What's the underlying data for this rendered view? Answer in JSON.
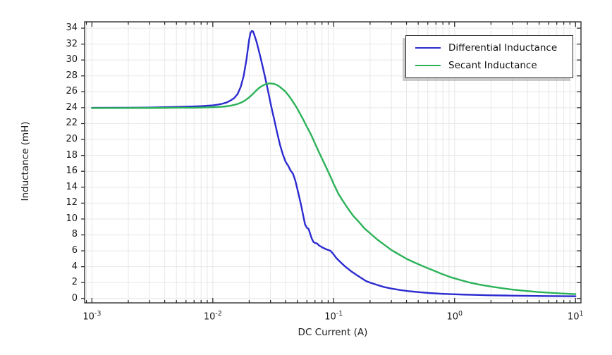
{
  "chart_data": {
    "type": "line",
    "title": "",
    "xlabel": "DC Current (A)",
    "ylabel": "Inductance (mH)",
    "x_scale": "log",
    "y_scale": "linear",
    "xlim": [
      0.00087,
      11.1
    ],
    "ylim": [
      -0.55,
      34.8
    ],
    "x_tick_exponents": [
      -3,
      -2,
      -1,
      0,
      1
    ],
    "y_ticks": [
      0,
      2,
      4,
      6,
      8,
      10,
      12,
      14,
      16,
      18,
      20,
      22,
      24,
      26,
      28,
      30,
      32,
      34
    ],
    "grid": true,
    "grid_color": "#e7e7e7",
    "frame_color": "#202020",
    "legend_position": "top-right",
    "legend_border_color": "#2a2a2a",
    "series": [
      {
        "name": "Differential Inductance",
        "color": "#2b2bd0",
        "points": [
          [
            0.001,
            23.98
          ],
          [
            0.0015,
            23.99
          ],
          [
            0.002,
            24.0
          ],
          [
            0.003,
            24.02
          ],
          [
            0.004,
            24.06
          ],
          [
            0.005,
            24.1
          ],
          [
            0.006,
            24.13
          ],
          [
            0.007,
            24.16
          ],
          [
            0.008,
            24.2
          ],
          [
            0.009,
            24.25
          ],
          [
            0.01,
            24.3
          ],
          [
            0.011,
            24.38
          ],
          [
            0.012,
            24.5
          ],
          [
            0.013,
            24.65
          ],
          [
            0.014,
            24.9
          ],
          [
            0.015,
            25.2
          ],
          [
            0.016,
            25.7
          ],
          [
            0.017,
            26.6
          ],
          [
            0.018,
            28.0
          ],
          [
            0.019,
            30.1
          ],
          [
            0.0195,
            31.4
          ],
          [
            0.02,
            32.6
          ],
          [
            0.0205,
            33.4
          ],
          [
            0.021,
            33.65
          ],
          [
            0.0215,
            33.6
          ],
          [
            0.022,
            33.2
          ],
          [
            0.023,
            32.3
          ],
          [
            0.024,
            31.2
          ],
          [
            0.025,
            30.1
          ],
          [
            0.026,
            29.0
          ],
          [
            0.027,
            27.9
          ],
          [
            0.028,
            26.8
          ],
          [
            0.029,
            25.7
          ],
          [
            0.03,
            24.6
          ],
          [
            0.031,
            23.6
          ],
          [
            0.032,
            22.7
          ],
          [
            0.034,
            20.9
          ],
          [
            0.036,
            19.3
          ],
          [
            0.038,
            18.1
          ],
          [
            0.04,
            17.2
          ],
          [
            0.042,
            16.7
          ],
          [
            0.044,
            16.1
          ],
          [
            0.046,
            15.7
          ],
          [
            0.048,
            14.9
          ],
          [
            0.05,
            13.8
          ],
          [
            0.052,
            12.7
          ],
          [
            0.054,
            11.6
          ],
          [
            0.056,
            10.4
          ],
          [
            0.058,
            9.3
          ],
          [
            0.06,
            8.9
          ],
          [
            0.062,
            8.75
          ],
          [
            0.064,
            8.1
          ],
          [
            0.066,
            7.5
          ],
          [
            0.068,
            7.1
          ],
          [
            0.07,
            7.0
          ],
          [
            0.073,
            6.9
          ],
          [
            0.076,
            6.65
          ],
          [
            0.08,
            6.45
          ],
          [
            0.085,
            6.25
          ],
          [
            0.09,
            6.1
          ],
          [
            0.094,
            6.0
          ],
          [
            0.098,
            5.7
          ],
          [
            0.105,
            5.1
          ],
          [
            0.115,
            4.5
          ],
          [
            0.125,
            4.0
          ],
          [
            0.14,
            3.4
          ],
          [
            0.155,
            2.95
          ],
          [
            0.17,
            2.55
          ],
          [
            0.185,
            2.2
          ],
          [
            0.2,
            2.0
          ],
          [
            0.23,
            1.7
          ],
          [
            0.26,
            1.45
          ],
          [
            0.3,
            1.25
          ],
          [
            0.36,
            1.05
          ],
          [
            0.43,
            0.9
          ],
          [
            0.52,
            0.78
          ],
          [
            0.63,
            0.68
          ],
          [
            0.78,
            0.6
          ],
          [
            0.95,
            0.54
          ],
          [
            1.2,
            0.49
          ],
          [
            1.5,
            0.45
          ],
          [
            1.9,
            0.41
          ],
          [
            2.5,
            0.38
          ],
          [
            3.2,
            0.35
          ],
          [
            4.2,
            0.33
          ],
          [
            5.5,
            0.31
          ],
          [
            7.0,
            0.3
          ],
          [
            8.5,
            0.29
          ],
          [
            10,
            0.28
          ]
        ]
      },
      {
        "name": "Secant Inductance",
        "color": "#2bb258",
        "points": [
          [
            0.001,
            23.95
          ],
          [
            0.002,
            23.96
          ],
          [
            0.003,
            23.97
          ],
          [
            0.004,
            23.98
          ],
          [
            0.005,
            24.0
          ],
          [
            0.006,
            24.0
          ],
          [
            0.007,
            24.0
          ],
          [
            0.008,
            24.02
          ],
          [
            0.009,
            24.04
          ],
          [
            0.01,
            24.06
          ],
          [
            0.011,
            24.09
          ],
          [
            0.012,
            24.13
          ],
          [
            0.013,
            24.18
          ],
          [
            0.014,
            24.25
          ],
          [
            0.015,
            24.35
          ],
          [
            0.016,
            24.47
          ],
          [
            0.017,
            24.62
          ],
          [
            0.018,
            24.8
          ],
          [
            0.019,
            25.05
          ],
          [
            0.02,
            25.3
          ],
          [
            0.021,
            25.6
          ],
          [
            0.022,
            25.9
          ],
          [
            0.023,
            26.2
          ],
          [
            0.024,
            26.45
          ],
          [
            0.025,
            26.65
          ],
          [
            0.026,
            26.8
          ],
          [
            0.027,
            26.92
          ],
          [
            0.028,
            27.0
          ],
          [
            0.029,
            27.04
          ],
          [
            0.03,
            27.05
          ],
          [
            0.032,
            27.0
          ],
          [
            0.034,
            26.85
          ],
          [
            0.036,
            26.6
          ],
          [
            0.038,
            26.3
          ],
          [
            0.04,
            26.0
          ],
          [
            0.043,
            25.4
          ],
          [
            0.046,
            24.75
          ],
          [
            0.049,
            24.1
          ],
          [
            0.052,
            23.4
          ],
          [
            0.056,
            22.5
          ],
          [
            0.06,
            21.6
          ],
          [
            0.065,
            20.6
          ],
          [
            0.07,
            19.5
          ],
          [
            0.075,
            18.5
          ],
          [
            0.08,
            17.6
          ],
          [
            0.086,
            16.6
          ],
          [
            0.093,
            15.5
          ],
          [
            0.1,
            14.4
          ],
          [
            0.11,
            13.1
          ],
          [
            0.12,
            12.2
          ],
          [
            0.13,
            11.4
          ],
          [
            0.145,
            10.4
          ],
          [
            0.16,
            9.7
          ],
          [
            0.18,
            8.8
          ],
          [
            0.2,
            8.2
          ],
          [
            0.23,
            7.4
          ],
          [
            0.26,
            6.8
          ],
          [
            0.3,
            6.1
          ],
          [
            0.35,
            5.5
          ],
          [
            0.4,
            5.0
          ],
          [
            0.47,
            4.5
          ],
          [
            0.55,
            4.05
          ],
          [
            0.65,
            3.6
          ],
          [
            0.78,
            3.1
          ],
          [
            0.92,
            2.7
          ],
          [
            1.1,
            2.35
          ],
          [
            1.3,
            2.05
          ],
          [
            1.6,
            1.75
          ],
          [
            2.0,
            1.5
          ],
          [
            2.5,
            1.28
          ],
          [
            3.1,
            1.1
          ],
          [
            3.9,
            0.95
          ],
          [
            4.9,
            0.82
          ],
          [
            6.2,
            0.72
          ],
          [
            7.8,
            0.63
          ],
          [
            10,
            0.55
          ]
        ]
      }
    ]
  }
}
